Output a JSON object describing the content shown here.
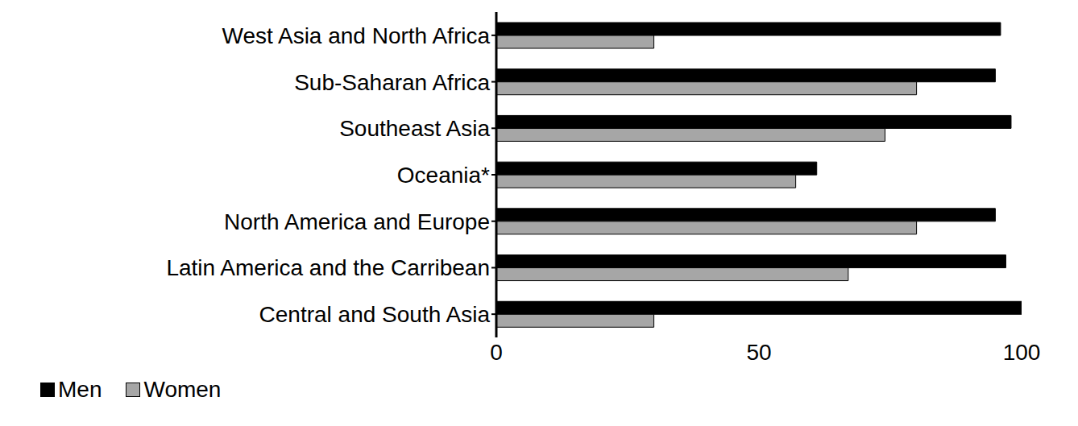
{
  "chart_data": {
    "type": "bar",
    "orientation": "horizontal",
    "categories": [
      "West Asia and North Africa",
      "Sub-Saharan Africa",
      "Southeast Asia",
      "Oceania*",
      "North America and Europe",
      "Latin America and the Carribean",
      "Central and South Asia"
    ],
    "series": [
      {
        "name": "Men",
        "color": "#000000",
        "values": [
          96,
          95,
          98,
          61,
          95,
          97,
          100
        ]
      },
      {
        "name": "Women",
        "color": "#a6a6a6",
        "values": [
          30,
          80,
          74,
          57,
          80,
          67,
          30
        ]
      }
    ],
    "xlim": [
      0,
      100
    ],
    "xticks": [
      0,
      50,
      100
    ],
    "grid": false,
    "legend": "bottom left"
  }
}
